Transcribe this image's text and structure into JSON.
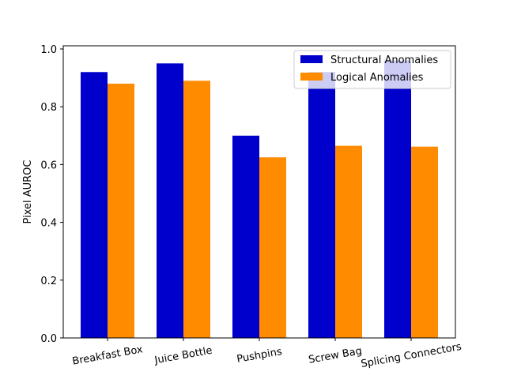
{
  "chart_data": {
    "type": "bar",
    "title": "",
    "xlabel": "",
    "ylabel": "Pixel AUROC",
    "ylim": [
      0,
      1.0
    ],
    "yticks": [
      0.0,
      0.2,
      0.4,
      0.6,
      0.8,
      1.0
    ],
    "ytick_labels": [
      "0.0",
      "0.2",
      "0.4",
      "0.6",
      "0.8",
      "1.0"
    ],
    "categories": [
      "Breakfast Box",
      "Juice Bottle",
      "Pushpins",
      "Screw Bag",
      "Splicing Connectors"
    ],
    "series": [
      {
        "name": "Structural Anomalies",
        "color": "#0000cd",
        "values": [
          0.92,
          0.95,
          0.7,
          0.92,
          0.96
        ]
      },
      {
        "name": "Logical Anomalies",
        "color": "#ff8c00",
        "values": [
          0.88,
          0.89,
          0.625,
          0.665,
          0.662
        ]
      }
    ],
    "legend": "top-right",
    "grid": false
  }
}
